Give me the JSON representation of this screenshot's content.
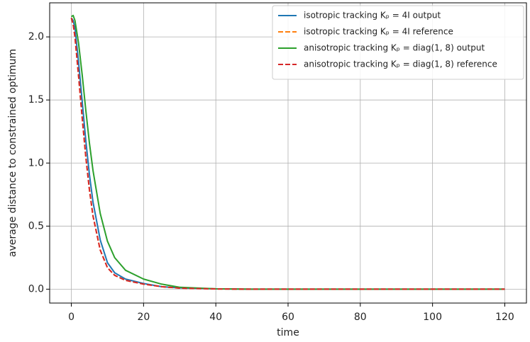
{
  "chart_data": {
    "type": "line",
    "xlabel": "time",
    "ylabel": "average distance to constrained optimum",
    "x": [
      0,
      0.5,
      1,
      2,
      3,
      4,
      5,
      6,
      8,
      10,
      12,
      15,
      20,
      25,
      30,
      40,
      50,
      60,
      80,
      100,
      120
    ],
    "series": [
      {
        "name": "isotropic tracking Kₚ = 4I output",
        "color": "#1f77b4",
        "linestyle": "solid",
        "values": [
          2.15,
          2.13,
          2.07,
          1.8,
          1.49,
          1.18,
          0.91,
          0.69,
          0.39,
          0.21,
          0.13,
          0.08,
          0.045,
          0.02,
          0.01,
          0.002,
          0,
          0,
          0,
          0,
          0
        ]
      },
      {
        "name": "isotropic tracking Kₚ = 4I reference",
        "color": "#ff7f0e",
        "linestyle": "dashed",
        "values": [
          2.15,
          2.1,
          2.0,
          1.69,
          1.36,
          1.05,
          0.79,
          0.58,
          0.31,
          0.17,
          0.11,
          0.07,
          0.04,
          0.02,
          0.008,
          0.002,
          0,
          0,
          0,
          0,
          0
        ]
      },
      {
        "name": "anisotropic tracking Kₚ = diag(1, 8) output",
        "color": "#2ca02c",
        "linestyle": "solid",
        "values": [
          2.16,
          2.17,
          2.13,
          1.95,
          1.7,
          1.42,
          1.16,
          0.94,
          0.6,
          0.38,
          0.25,
          0.15,
          0.08,
          0.04,
          0.015,
          0.003,
          0,
          0,
          0,
          0,
          0
        ]
      },
      {
        "name": "anisotropic tracking Kₚ = diag(1, 8) reference",
        "color": "#d62728",
        "linestyle": "dashed",
        "values": [
          2.15,
          2.1,
          2.0,
          1.69,
          1.36,
          1.05,
          0.79,
          0.58,
          0.31,
          0.17,
          0.11,
          0.07,
          0.04,
          0.02,
          0.008,
          0.002,
          0,
          0,
          0,
          0,
          0
        ]
      }
    ],
    "xlim": [
      -6,
      126
    ],
    "ylim": [
      -0.11,
      2.27
    ],
    "xticks": [
      0,
      20,
      40,
      60,
      80,
      100,
      120
    ],
    "yticks": [
      {
        "value": 0,
        "label": "0.0"
      },
      {
        "value": 0.5,
        "label": "0.5"
      },
      {
        "value": 1,
        "label": "1.0"
      },
      {
        "value": 1.5,
        "label": "1.5"
      },
      {
        "value": 2,
        "label": "2.0"
      }
    ],
    "grid": true,
    "legend": "upper right"
  }
}
